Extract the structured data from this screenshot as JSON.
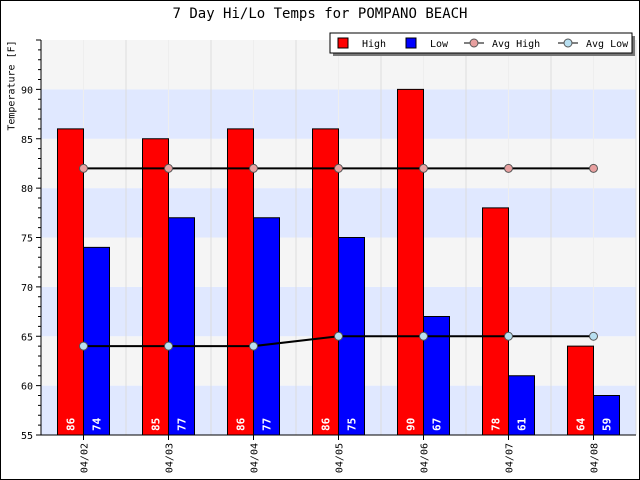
{
  "colors": {
    "high": "#ff0000",
    "low": "#0000ff",
    "avg_high_marker": "#e8a0a0",
    "avg_low_marker": "#b8dff0",
    "band_light": "#e0e8ff",
    "band_grey": "#f5f5f5"
  },
  "chart_data": {
    "type": "bar",
    "title": "7 Day Hi/Lo Temps for POMPANO BEACH",
    "ylabel": "Temperature [F]",
    "xlabel": "",
    "ylim": [
      55,
      95
    ],
    "yticks": [
      55,
      60,
      65,
      70,
      75,
      80,
      85,
      90
    ],
    "categories": [
      "04/02",
      "04/03",
      "04/04",
      "04/05",
      "04/06",
      "04/07",
      "04/08"
    ],
    "series": [
      {
        "name": "High",
        "kind": "bar",
        "values": [
          86,
          85,
          86,
          86,
          90,
          78,
          64
        ]
      },
      {
        "name": "Low",
        "kind": "bar",
        "values": [
          74,
          77,
          77,
          75,
          67,
          61,
          59
        ]
      },
      {
        "name": "Avg High",
        "kind": "line",
        "values": [
          82,
          82,
          82,
          82,
          82,
          82,
          82
        ]
      },
      {
        "name": "Avg Low",
        "kind": "line",
        "values": [
          64,
          64,
          64,
          65,
          65,
          65,
          65
        ]
      }
    ],
    "legend": "top-right",
    "grid": true
  }
}
